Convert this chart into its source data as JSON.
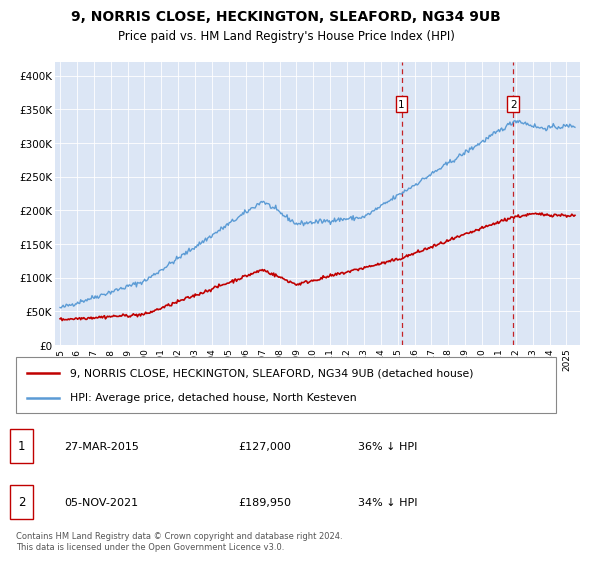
{
  "title": "9, NORRIS CLOSE, HECKINGTON, SLEAFORD, NG34 9UB",
  "subtitle": "Price paid vs. HM Land Registry's House Price Index (HPI)",
  "background_color": "#dce6f5",
  "hpi_color": "#5b9bd5",
  "price_color": "#c00000",
  "ylim": [
    0,
    420000
  ],
  "yticks": [
    0,
    50000,
    100000,
    150000,
    200000,
    250000,
    300000,
    350000,
    400000
  ],
  "ytick_labels": [
    "£0",
    "£50K",
    "£100K",
    "£150K",
    "£200K",
    "£250K",
    "£300K",
    "£350K",
    "£400K"
  ],
  "xlim_start": 1994.7,
  "xlim_end": 2025.8,
  "sale1_x": 2015.23,
  "sale2_x": 2021.84,
  "annotation1": [
    "1",
    "27-MAR-2015",
    "£127,000",
    "36% ↓ HPI"
  ],
  "annotation2": [
    "2",
    "05-NOV-2021",
    "£189,950",
    "34% ↓ HPI"
  ],
  "legend_line1": "9, NORRIS CLOSE, HECKINGTON, SLEAFORD, NG34 9UB (detached house)",
  "legend_line2": "HPI: Average price, detached house, North Kesteven",
  "footer": "Contains HM Land Registry data © Crown copyright and database right 2024.\nThis data is licensed under the Open Government Licence v3.0.",
  "xticks": [
    1995,
    1996,
    1997,
    1998,
    1999,
    2000,
    2001,
    2002,
    2003,
    2004,
    2005,
    2006,
    2007,
    2008,
    2009,
    2010,
    2011,
    2012,
    2013,
    2014,
    2015,
    2016,
    2017,
    2018,
    2019,
    2020,
    2021,
    2022,
    2023,
    2024,
    2025
  ]
}
